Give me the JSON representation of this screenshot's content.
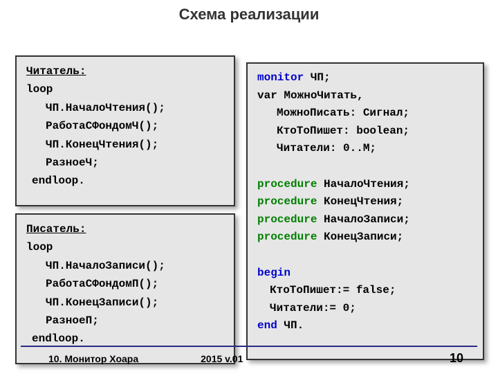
{
  "title": "Схема реализации",
  "reader": {
    "header": "Читатель:",
    "l1": "loop",
    "l2": "ЧП.НачалоЧтения();",
    "l3": "РаботаСФондомЧ();",
    "l4": "ЧП.КонецЧтения();",
    "l5": "РазноеЧ;",
    "l6": "endloop."
  },
  "writer": {
    "header": "Писатель:",
    "l1": "loop",
    "l2": "ЧП.НачалоЗаписи();",
    "l3": "РаботаСФондомП();",
    "l4": "ЧП.КонецЗаписи();",
    "l5": "РазноеП;",
    "l6": "endloop."
  },
  "monitor": {
    "kw_monitor": "monitor",
    "m1_rest": " ЧП;",
    "m2": "var МожноЧитать,",
    "m3": "МожноПисать: Сигнал;",
    "m4": "КтоТоПишет: boolean;",
    "m5": "Читатели: 0..M;",
    "kw_proc": "procedure",
    "p1": " НачалоЧтения;",
    "p2": " КонецЧтения;",
    "p3": " НачалоЗаписи;",
    "p4": " КонецЗаписи;",
    "kw_begin": "begin",
    "b1": "КтоТоПишет:= false;",
    "b2": "Читатели:= 0;",
    "kw_end": "end",
    "end_rest": " ЧП."
  },
  "footer": {
    "left": "10. Монитор Хоара",
    "mid": "2015 v.01",
    "page": "10"
  },
  "colors": {
    "box_bg": "#e6e6e6",
    "keyword_blue": "#0000cc",
    "keyword_green": "#008000",
    "hr": "#2a2a8a"
  }
}
